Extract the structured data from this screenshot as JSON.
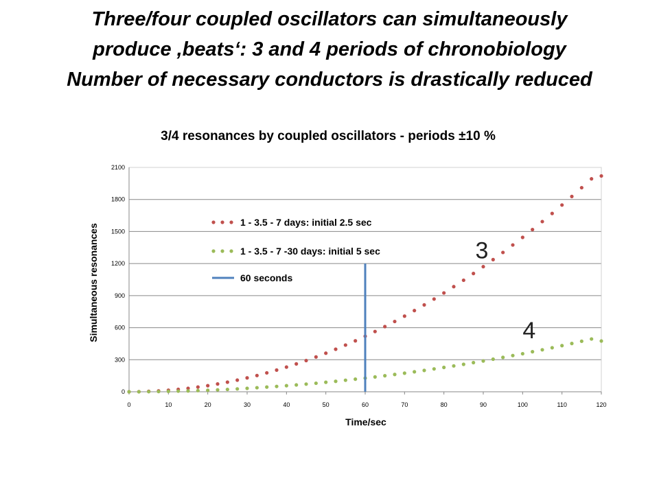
{
  "slide": {
    "title_lines": [
      "Three/four coupled oscillators can simultaneously",
      "produce ,beats‘: 3 and 4 periods of chronobiology",
      "Number of necessary conductors is drastically reduced"
    ]
  },
  "chart_data": {
    "type": "scatter",
    "title": "3/4 resonances by coupled oscillators - periods ±10 %",
    "xlabel": "Time/sec",
    "ylabel": "Simultaneous resonances",
    "xlim": [
      0,
      120
    ],
    "ylim": [
      0,
      2100
    ],
    "x_ticks": [
      "0",
      "10",
      "20",
      "30",
      "40",
      "50",
      "60",
      "70",
      "80",
      "90",
      "100",
      "110",
      "120"
    ],
    "y_ticks": [
      "0",
      "300",
      "600",
      "900",
      "1200",
      "1500",
      "1800",
      "2100"
    ],
    "grid": "horizontal",
    "legend_position": "upper-left-inside",
    "series": [
      {
        "name": "1 - 3.5 - 7 days: initial 2.5 sec",
        "color": "#c0504d",
        "marker": "dot",
        "x": [
          0,
          2.5,
          5,
          7.5,
          10,
          12.5,
          15,
          17.5,
          20,
          22.5,
          25,
          27.5,
          30,
          32.5,
          35,
          37.5,
          40,
          42.5,
          45,
          47.5,
          50,
          52.5,
          55,
          57.5,
          60,
          62.5,
          65,
          67.5,
          70,
          72.5,
          75,
          77.5,
          80,
          82.5,
          85,
          87.5,
          90,
          92.5,
          95,
          97.5,
          100,
          102.5,
          105,
          107.5,
          110,
          112.5,
          115,
          117.5,
          120
        ],
        "y": [
          0,
          1,
          4,
          8,
          15,
          23,
          32,
          44,
          57,
          73,
          90,
          109,
          130,
          152,
          177,
          203,
          231,
          261,
          292,
          326,
          361,
          398,
          437,
          477,
          520,
          564,
          610,
          658,
          708,
          760,
          813,
          868,
          925,
          984,
          1044,
          1107,
          1171,
          1237,
          1304,
          1374,
          1445,
          1518,
          1593,
          1669,
          1748,
          1828,
          1910,
          1993,
          2020
        ]
      },
      {
        "name": "1 - 3.5 - 7 -30  days: initial 5 sec",
        "color": "#9bbb59",
        "marker": "dot",
        "x": [
          0,
          2.5,
          5,
          7.5,
          10,
          12.5,
          15,
          17.5,
          20,
          22.5,
          25,
          27.5,
          30,
          32.5,
          35,
          37.5,
          40,
          42.5,
          45,
          47.5,
          50,
          52.5,
          55,
          57.5,
          60,
          62.5,
          65,
          67.5,
          70,
          72.5,
          75,
          77.5,
          80,
          82.5,
          85,
          87.5,
          90,
          92.5,
          95,
          97.5,
          100,
          102.5,
          105,
          107.5,
          110,
          112.5,
          115,
          117.5,
          120
        ],
        "y": [
          0,
          0,
          1,
          2,
          4,
          6,
          8,
          11,
          14,
          18,
          22,
          27,
          32,
          38,
          44,
          50,
          57,
          64,
          72,
          80,
          89,
          98,
          108,
          118,
          128,
          139,
          150,
          162,
          174,
          187,
          200,
          214,
          228,
          242,
          257,
          273,
          288,
          305,
          322,
          339,
          356,
          375,
          393,
          412,
          432,
          452,
          473,
          494,
          475
        ]
      },
      {
        "name": "60 seconds",
        "color": "#4f81bd",
        "marker": "line",
        "x": [
          60,
          60
        ],
        "y": [
          0,
          1200
        ]
      }
    ],
    "annotations": [
      {
        "text": "3",
        "x": 88,
        "y": 1250
      },
      {
        "text": "4",
        "x": 100,
        "y": 500
      }
    ]
  }
}
